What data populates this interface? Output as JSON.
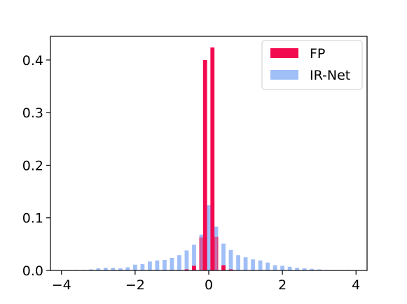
{
  "chart_data": {
    "type": "bar",
    "title": "",
    "xlabel": "",
    "ylabel": "",
    "xlim": [
      -4.3,
      4.3
    ],
    "ylim": [
      0.0,
      0.445
    ],
    "grid": false,
    "legend_position": "top-right",
    "x_ticks": [
      -4,
      -2,
      0,
      2,
      4
    ],
    "x_tick_labels": [
      "−4",
      "−2",
      "0",
      "2",
      "4"
    ],
    "y_ticks": [
      0.0,
      0.1,
      0.2,
      0.3,
      0.4
    ],
    "y_tick_labels": [
      "0.0",
      "0.1",
      "0.2",
      "0.3",
      "0.4"
    ],
    "series": [
      {
        "name": "IR-Net",
        "color": "#a0bff7",
        "opacity": 1.0,
        "bin_width": 0.11,
        "x": [
          -3.8,
          -3.6,
          -3.4,
          -3.2,
          -3.0,
          -2.8,
          -2.6,
          -2.4,
          -2.2,
          -2.0,
          -1.8,
          -1.6,
          -1.4,
          -1.2,
          -1.0,
          -0.8,
          -0.6,
          -0.4,
          -0.2,
          0.0,
          0.2,
          0.4,
          0.6,
          0.8,
          1.0,
          1.2,
          1.4,
          1.6,
          1.8,
          2.0,
          2.2,
          2.4,
          2.6,
          2.8,
          3.0,
          3.2,
          3.4,
          3.6,
          3.8
        ],
        "values": [
          0.001,
          0.001,
          0.001,
          0.002,
          0.004,
          0.005,
          0.005,
          0.004,
          0.006,
          0.011,
          0.012,
          0.017,
          0.019,
          0.02,
          0.024,
          0.029,
          0.038,
          0.049,
          0.068,
          0.124,
          0.083,
          0.051,
          0.039,
          0.029,
          0.025,
          0.021,
          0.019,
          0.015,
          0.01,
          0.009,
          0.007,
          0.005,
          0.004,
          0.003,
          0.002,
          0.001,
          0.001,
          0.001,
          0.001
        ]
      },
      {
        "name": "FP",
        "color": "#f20a4f",
        "opacity": 1.0,
        "bin_width": 0.11,
        "x": [
          -0.6,
          -0.4,
          -0.2,
          -0.1,
          0.1,
          0.2,
          0.4,
          0.6
        ],
        "values": [
          0.002,
          0.009,
          0.063,
          0.4,
          0.424,
          0.064,
          0.01,
          0.002
        ]
      },
      {
        "name": "",
        "color": "#a0bff7",
        "opacity": 0.55,
        "bin_width": 0.08,
        "x": [
          -0.2,
          0.0,
          0.2
        ],
        "values": [
          0.068,
          0.124,
          0.083
        ]
      }
    ],
    "legend": [
      {
        "label": "FP",
        "color": "#f20a4f"
      },
      {
        "label": "IR-Net",
        "color": "#a0bff7"
      }
    ]
  }
}
